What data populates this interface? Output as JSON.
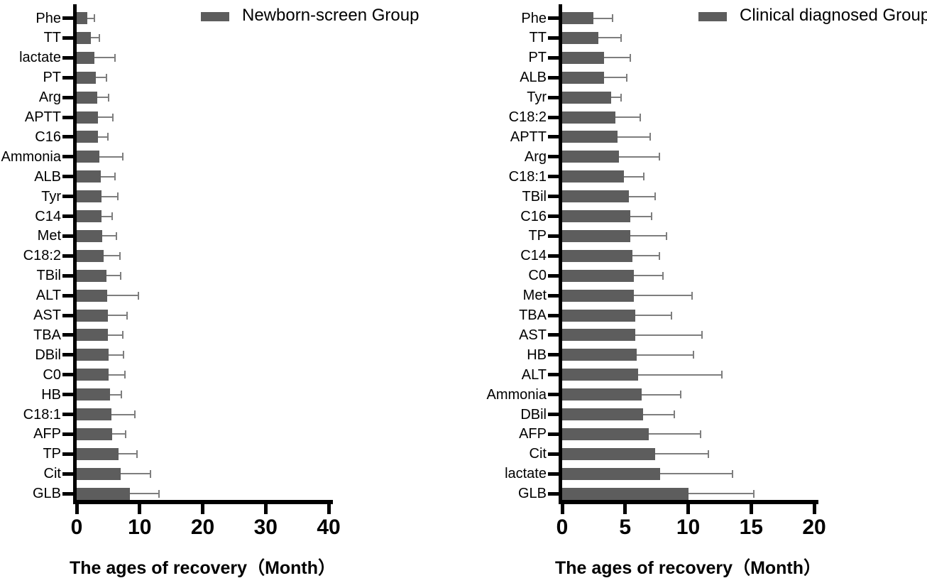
{
  "chart_data": [
    {
      "type": "bar",
      "orientation": "horizontal",
      "legend": "Newborn-screen Group",
      "xlabel": "The ages of recovery（Month）",
      "xlim": [
        0,
        40
      ],
      "xticks": [
        0,
        10,
        20,
        30,
        40
      ],
      "bar_color": "#5d5d5d",
      "error_color": "#7e7e7e",
      "error_style": "upper SD whisker with cap",
      "categories": [
        "Phe",
        "TT",
        "lactate",
        "PT",
        "Arg",
        "APTT",
        "C16",
        "Ammonia",
        "ALB",
        "Tyr",
        "C14",
        "Met",
        "C18:2",
        "TBil",
        "ALT",
        "AST",
        "TBA",
        "DBil",
        "C0",
        "HB",
        "C18:1",
        "AFP",
        "TP",
        "Cit",
        "GLB"
      ],
      "values": [
        1.7,
        2.3,
        2.8,
        3.0,
        3.3,
        3.4,
        3.4,
        3.6,
        3.8,
        3.9,
        3.9,
        4.1,
        4.3,
        4.7,
        4.8,
        5.0,
        5.0,
        5.1,
        5.1,
        5.3,
        5.5,
        5.6,
        6.6,
        7.0,
        8.5
      ],
      "error_upper": [
        2.8,
        3.6,
        6.1,
        4.7,
        5.1,
        5.7,
        5.0,
        7.3,
        6.1,
        6.5,
        5.6,
        6.3,
        6.9,
        7.0,
        9.8,
        8.0,
        7.3,
        7.4,
        7.7,
        7.1,
        9.2,
        7.8,
        9.6,
        11.7,
        13.1
      ]
    },
    {
      "type": "bar",
      "orientation": "horizontal",
      "legend": "Clinical diagnosed Group",
      "xlabel": "The ages of recovery（Month）",
      "xlim": [
        0,
        20
      ],
      "xticks": [
        0,
        5,
        10,
        15,
        20
      ],
      "bar_color": "#5d5d5d",
      "error_color": "#7e7e7e",
      "error_style": "upper SD whisker with cap",
      "categories": [
        "Phe",
        "TT",
        "PT",
        "ALB",
        "Tyr",
        "C18:2",
        "APTT",
        "Arg",
        "C18:1",
        "TBil",
        "C16",
        "TP",
        "C14",
        "C0",
        "Met",
        "TBA",
        "AST",
        "HB",
        "ALT",
        "Ammonia",
        "DBil",
        "AFP",
        "Cit",
        "lactate",
        "GLB"
      ],
      "values": [
        2.5,
        2.9,
        3.3,
        3.3,
        3.9,
        4.2,
        4.4,
        4.5,
        4.9,
        5.3,
        5.4,
        5.4,
        5.6,
        5.7,
        5.7,
        5.8,
        5.8,
        5.9,
        6.0,
        6.3,
        6.4,
        6.9,
        7.4,
        7.8,
        10.0
      ],
      "error_upper": [
        4.0,
        4.7,
        5.4,
        5.1,
        4.7,
        6.2,
        7.0,
        7.7,
        6.5,
        7.4,
        7.1,
        8.3,
        7.7,
        8.0,
        10.3,
        8.7,
        11.1,
        10.4,
        12.7,
        9.4,
        8.9,
        11.0,
        11.6,
        13.5,
        15.2
      ]
    }
  ]
}
